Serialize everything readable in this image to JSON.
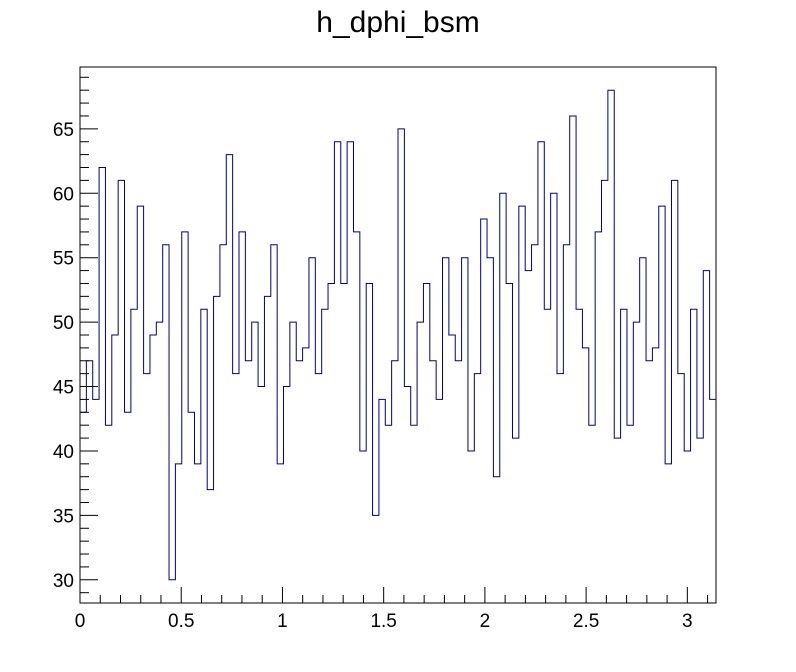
{
  "chart_data": {
    "type": "histogram",
    "title": "h_dphi_bsm",
    "xlabel": "",
    "ylabel": "",
    "xlim": [
      0,
      3.1416
    ],
    "ylim": [
      28.2,
      69.8
    ],
    "bins": 100,
    "x_ticks": [
      "0",
      "0.5",
      "1",
      "1.5",
      "2",
      "2.5",
      "3"
    ],
    "x_tick_values": [
      0,
      0.5,
      1,
      1.5,
      2,
      2.5,
      3
    ],
    "y_ticks": [
      "30",
      "35",
      "40",
      "45",
      "50",
      "55",
      "60",
      "65"
    ],
    "y_tick_values": [
      30,
      35,
      40,
      45,
      50,
      55,
      60,
      65
    ],
    "series": [
      {
        "values": [
          43,
          47,
          44,
          62,
          42,
          49,
          61,
          43,
          51,
          59,
          46,
          49,
          50,
          56,
          30,
          39,
          57,
          43,
          39,
          51,
          37,
          52,
          56,
          63,
          46,
          57,
          47,
          50,
          45,
          52,
          56,
          39,
          45,
          50,
          47,
          48,
          55,
          46,
          51,
          53,
          64,
          53,
          64,
          57,
          40,
          53,
          35,
          44,
          42,
          47,
          65,
          45,
          42,
          50,
          53,
          47,
          44,
          55,
          49,
          47,
          55,
          40,
          46,
          58,
          55,
          38,
          60,
          53,
          41,
          59,
          54,
          56,
          64,
          51,
          60,
          46,
          56,
          66,
          51,
          48,
          42,
          57,
          61,
          68,
          41,
          51,
          42,
          50,
          55,
          47,
          48,
          59,
          39,
          61,
          46,
          40,
          51,
          41,
          54,
          44
        ]
      }
    ],
    "grid": false,
    "line_color": "#00007f"
  }
}
